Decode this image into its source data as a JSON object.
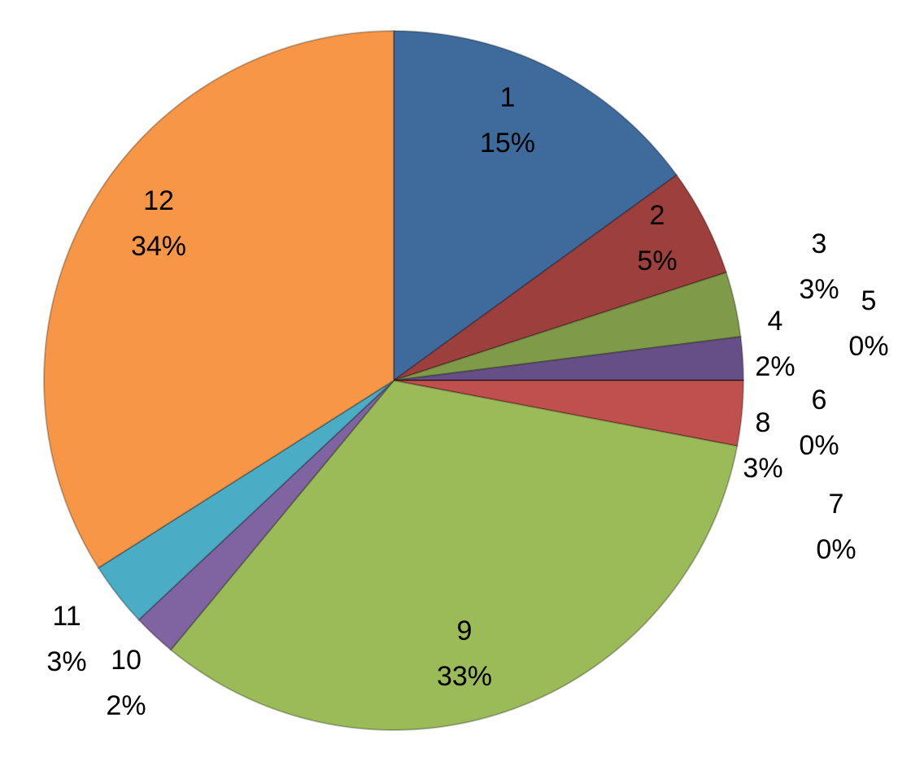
{
  "chart_data": {
    "type": "pie",
    "categories": [
      "1",
      "2",
      "3",
      "4",
      "5",
      "6",
      "7",
      "8",
      "9",
      "10",
      "11",
      "12"
    ],
    "values": [
      15,
      5,
      3,
      2,
      0,
      0,
      0,
      3,
      33,
      2,
      3,
      34
    ],
    "value_labels": [
      "15%",
      "5%",
      "3%",
      "2%",
      "0%",
      "0%",
      "0%",
      "3%",
      "33%",
      "2%",
      "3%",
      "34%"
    ],
    "colors": [
      "#3f6a9c",
      "#9c3f3d",
      "#7f9a48",
      "#664f86",
      "#3b8fa6",
      "#d17a33",
      "#7a9fcf",
      "#c0504d",
      "#9bbb59",
      "#8064a2",
      "#4bacc6",
      "#f79646"
    ]
  }
}
